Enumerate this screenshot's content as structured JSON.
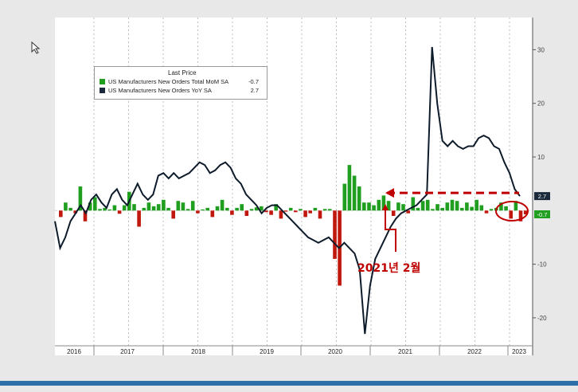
{
  "chart_data": {
    "type": "bar+line",
    "legend": {
      "title": "Last Price",
      "items": [
        {
          "name": "US Manufacturers New Orders Total MoM SA",
          "value": "-0.7",
          "color": "#1f9e1f"
        },
        {
          "name": "US Manufacturers New Orders YoY SA",
          "value": "2.7",
          "color": "#1a2a3a"
        }
      ]
    },
    "y_axis": {
      "ticks": [
        30,
        20,
        10,
        -10,
        -20
      ],
      "side": "right",
      "ylim": [
        -27,
        36
      ]
    },
    "x_axis": {
      "labels": [
        "2016",
        "2017",
        "2018",
        "2019",
        "2020",
        "2021",
        "2022",
        "2023"
      ]
    },
    "value_tags": [
      {
        "text": "2.7",
        "value": 2.7,
        "color": "#1a2a3a"
      },
      {
        "text": "-0.7",
        "value": -0.7,
        "color": "#1f9e1f"
      }
    ],
    "annotation": {
      "text": "2021년 2월"
    },
    "series": [
      {
        "name": "US Manufacturers New Orders Total MoM SA",
        "type": "bar",
        "values": [
          -1.2,
          1.5,
          0.5,
          -0.5,
          4.5,
          -2.0,
          1.5,
          2.5,
          0.3,
          0.5,
          0.2,
          1.0,
          -0.6,
          1.0,
          3.5,
          1.2,
          -3.0,
          0.5,
          1.5,
          0.8,
          1.2,
          2.0,
          0.5,
          -1.5,
          1.8,
          1.5,
          0.3,
          1.8,
          -0.5,
          0.2,
          0.5,
          -1.2,
          0.8,
          2.0,
          0.5,
          -0.8,
          0.5,
          1.2,
          -1.0,
          0.3,
          0.6,
          0.8,
          -0.3,
          -0.8,
          1.2,
          -1.5,
          -0.2,
          0.5,
          -0.3,
          0.3,
          -1.2,
          -0.5,
          0.5,
          -1.5,
          0.3,
          0.3,
          -9.0,
          -14.0,
          5.0,
          8.5,
          6.5,
          4.5,
          1.5,
          1.5,
          1.0,
          2.0,
          2.8,
          1.8,
          -1.0,
          1.5,
          1.2,
          -0.5,
          2.5,
          0.5,
          1.8,
          2.0,
          0.3,
          1.2,
          0.5,
          1.5,
          2.0,
          1.8,
          0.5,
          1.5,
          0.7,
          2.0,
          1.0,
          -0.5,
          0.3,
          0.5,
          1.5,
          0.8,
          -1.5,
          1.8,
          -2.0,
          -0.7
        ]
      },
      {
        "name": "US Manufacturers New Orders YoY SA",
        "type": "line",
        "values": [
          -2,
          -7,
          -5,
          -2,
          -0.5,
          1,
          -0.5,
          2,
          3,
          1.5,
          0.5,
          3,
          4,
          2,
          1,
          3,
          5,
          3,
          2,
          3,
          6.5,
          7,
          6,
          7,
          6,
          6.5,
          7,
          8,
          9,
          8.5,
          7,
          7.5,
          8.5,
          9,
          8,
          6,
          5,
          3,
          2,
          1,
          -0.5,
          0.5,
          1,
          1,
          0,
          -1,
          -2,
          -3,
          -4,
          -5,
          -5.5,
          -6,
          -5.5,
          -5,
          -6,
          -7,
          -6,
          -7,
          -8,
          -11,
          -23,
          -14,
          -9,
          -7,
          -5,
          -3,
          -1.5,
          -0.5,
          0,
          0.5,
          1,
          2,
          3,
          30.5,
          20,
          13,
          12,
          13,
          12,
          11.5,
          12,
          12,
          13.5,
          14,
          13.5,
          12,
          11.5,
          9,
          7,
          4,
          2.7
        ]
      }
    ]
  }
}
